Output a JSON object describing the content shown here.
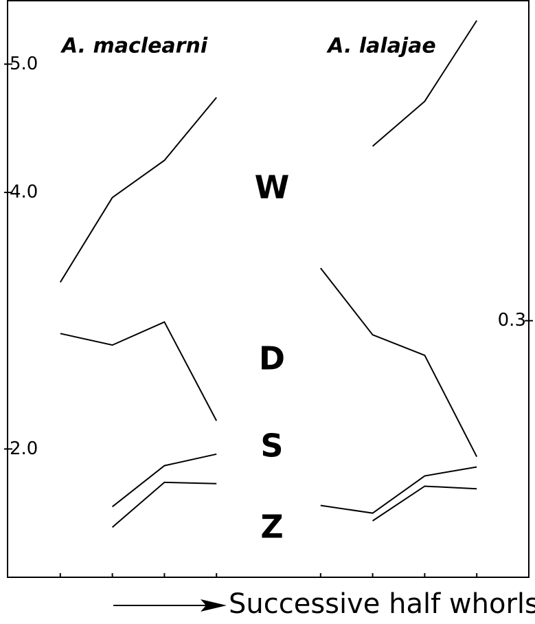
{
  "chart_data": {
    "type": "line",
    "annotations": [
      "A. maclearni",
      "A. lalajae",
      "W",
      "D",
      "S",
      "Z"
    ],
    "x_label": "Successive half whorls",
    "xlim": [
      0,
      10
    ],
    "xticks": [
      1,
      2,
      3,
      4,
      6,
      7,
      8,
      9
    ],
    "ylim": [
      1.0,
      5.5
    ],
    "yticks": [
      {
        "value": 2,
        "label": "2.0"
      },
      {
        "value": 4,
        "label": "4.0"
      },
      {
        "value": 5,
        "label": "5.0"
      }
    ],
    "y2lim": [
      0.1,
      0.55
    ],
    "y2ticks": [
      {
        "value": 0.3,
        "label": "0.3"
      }
    ],
    "series": [
      {
        "color": "#000000",
        "x": [
          1,
          2,
          3,
          4
        ],
        "values": [
          3.3,
          3.96,
          4.25,
          4.74
        ]
      },
      {
        "color": "#000000",
        "x": [
          7,
          8,
          9
        ],
        "values": [
          4.36,
          4.71,
          5.34
        ]
      },
      {
        "color": "#000000",
        "axis": "y2",
        "x": [
          1,
          2,
          3,
          4
        ],
        "values": [
          0.29,
          0.281,
          0.299,
          0.222
        ]
      },
      {
        "color": "#000000",
        "axis": "y2",
        "x": [
          6,
          7,
          8,
          9
        ],
        "values": [
          0.341,
          0.289,
          0.273,
          0.194
        ]
      },
      {
        "color": "#000000",
        "x": [
          2,
          3,
          4
        ],
        "values": [
          1.55,
          1.87,
          1.96
        ]
      },
      {
        "color": "#000000",
        "x": [
          6,
          7,
          8,
          9
        ],
        "values": [
          1.56,
          1.5,
          1.79,
          1.86
        ]
      },
      {
        "color": "#000000",
        "x": [
          2,
          3,
          4
        ],
        "values": [
          1.39,
          1.74,
          1.73
        ]
      },
      {
        "color": "#000000",
        "x": [
          7,
          8,
          9
        ],
        "values": [
          1.44,
          1.71,
          1.69
        ]
      }
    ]
  }
}
